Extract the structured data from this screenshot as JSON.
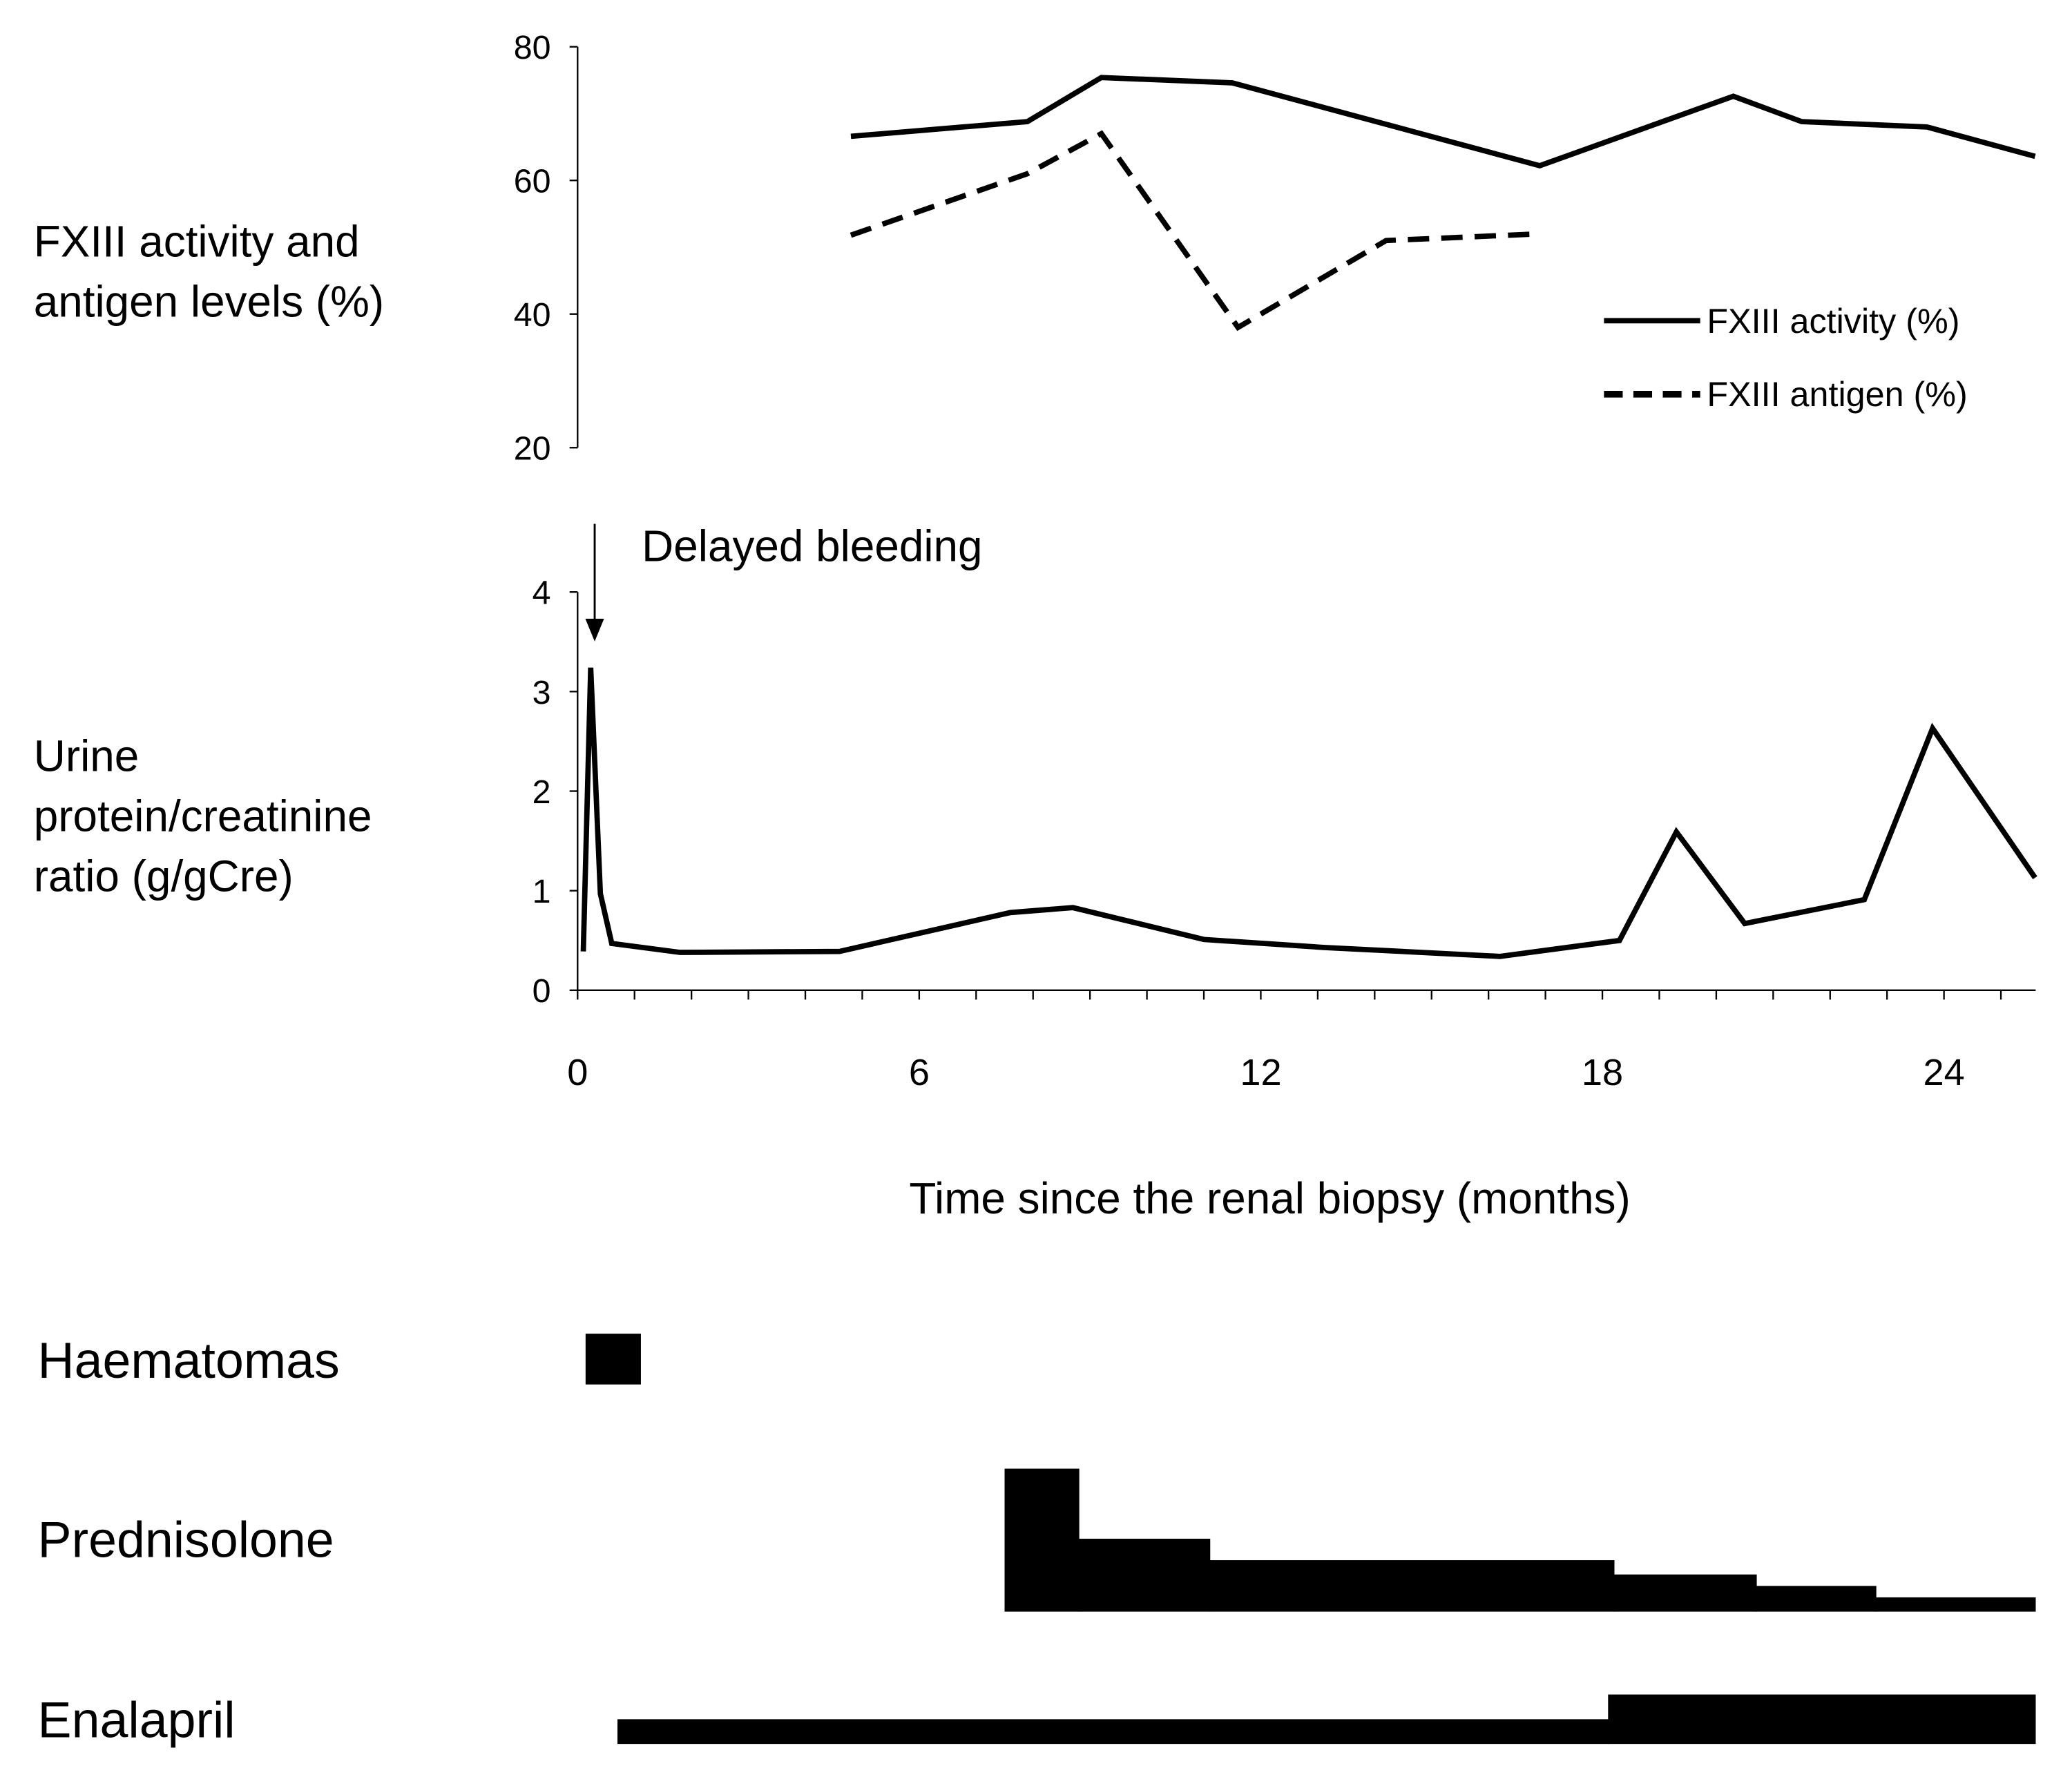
{
  "chart_data": [
    {
      "type": "line",
      "ylabel": [
        "FXIII activity and",
        "antigen levels (%)"
      ],
      "ylim": [
        20,
        80
      ],
      "yticks": [
        20,
        40,
        60,
        80
      ],
      "xlim": [
        0,
        25.6
      ],
      "legend_position": "right",
      "series": [
        {
          "name": "FXIII activity (%)",
          "style": "solid",
          "x": [
            4.8,
            7.9,
            9.2,
            11.5,
            16.9,
            20.3,
            21.5,
            23.7,
            25.6
          ],
          "y": [
            66.6,
            68.8,
            75.4,
            74.6,
            62.2,
            72.6,
            68.8,
            68,
            63.6
          ]
        },
        {
          "name": "FXIII antigen (%)",
          "style": "dashed",
          "x": [
            4.8,
            7.9,
            9.2,
            11.6,
            14.2,
            16.9
          ],
          "y": [
            51.8,
            61,
            67,
            38,
            51,
            52
          ]
        }
      ]
    },
    {
      "type": "line",
      "ylabel": [
        "Urine",
        "protein/creatinine",
        "ratio (g/gCre)"
      ],
      "ylim": [
        0,
        4
      ],
      "yticks": [
        0,
        1,
        2,
        3,
        4
      ],
      "xlim": [
        0,
        25.6
      ],
      "xticks": [
        0,
        6,
        12,
        18,
        24
      ],
      "xlabel": "Time since the renal biopsy (months)",
      "annotation": {
        "text": "Delayed bleeding",
        "x": 0.3
      },
      "series": [
        {
          "name": "Urine protein/creatinine ratio",
          "x": [
            0.1,
            0.23,
            0.4,
            0.6,
            1.8,
            4.6,
            7.6,
            8.7,
            11.0,
            13.1,
            16.2,
            18.3,
            19.3,
            20.5,
            22.6,
            23.8,
            25.6
          ],
          "y": [
            0.39,
            3.24,
            0.97,
            0.47,
            0.38,
            0.39,
            0.78,
            0.83,
            0.51,
            0.43,
            0.34,
            0.5,
            1.59,
            0.67,
            0.91,
            2.63,
            1.13
          ]
        }
      ]
    },
    {
      "type": "timeline",
      "rows": [
        {
          "label": "Haematomas",
          "segments": [
            {
              "start": 0.14,
              "end": 1.1,
              "level": 1
            }
          ]
        },
        {
          "label": "Prednisolone",
          "segments": [
            {
              "start": 7.5,
              "end": 8.8,
              "level": 1.0
            },
            {
              "start": 8.8,
              "end": 11.1,
              "level": 0.51
            },
            {
              "start": 11.1,
              "end": 18.2,
              "level": 0.36
            },
            {
              "start": 18.2,
              "end": 20.7,
              "level": 0.26
            },
            {
              "start": 20.7,
              "end": 22.8,
              "level": 0.18
            },
            {
              "start": 22.8,
              "end": 25.6,
              "level": 0.1
            }
          ]
        },
        {
          "label": "Enalapril",
          "segments": [
            {
              "start": 0.7,
              "end": 18.1,
              "level": 0.5
            },
            {
              "start": 18.1,
              "end": 25.6,
              "level": 1.0
            }
          ]
        }
      ]
    }
  ]
}
